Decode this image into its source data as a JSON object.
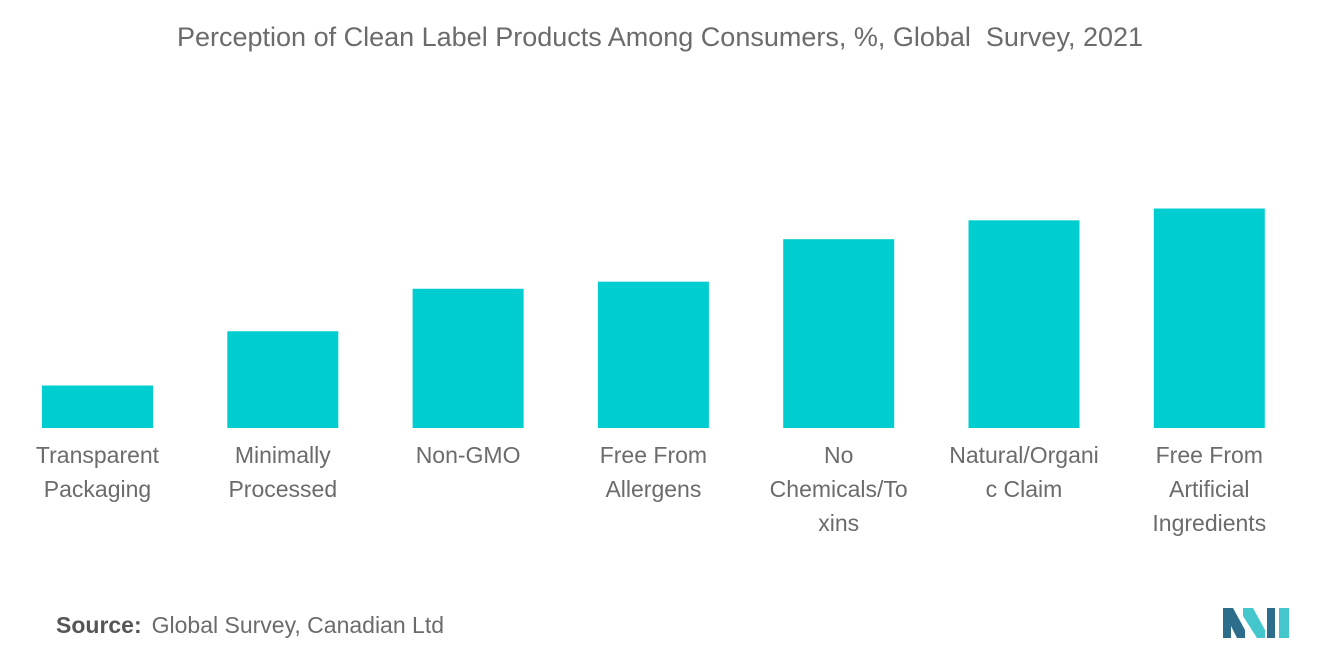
{
  "title": "Perception of Clean Label Products Among Consumers, %, Global  Survey, 2021",
  "source": {
    "label": "Source:",
    "text": "Global Survey, Canadian Ltd"
  },
  "colors": {
    "bar": "#00cdd0",
    "text": "#6b6b6b",
    "logo_dark": "#2c6d8c",
    "logo_light": "#43c6cc"
  },
  "logo_icon": "mordor-intelligence-logo-icon",
  "chart_data": {
    "type": "bar",
    "categories": [
      [
        "Transparent",
        "Packaging"
      ],
      [
        "Minimally",
        "Processed"
      ],
      [
        "Non-GMO"
      ],
      [
        "Free From",
        "Allergens"
      ],
      [
        "No",
        "Chemicals/To",
        "xins"
      ],
      [
        "Natural/Organi",
        "c Claim"
      ],
      [
        "Free From",
        "Artificial",
        "Ingredients"
      ]
    ],
    "values": [
      18,
      41,
      59,
      62,
      80,
      88,
      93
    ],
    "ylim": [
      0,
      100
    ],
    "grid": false,
    "legend": "none",
    "xlabel": "",
    "ylabel": ""
  }
}
